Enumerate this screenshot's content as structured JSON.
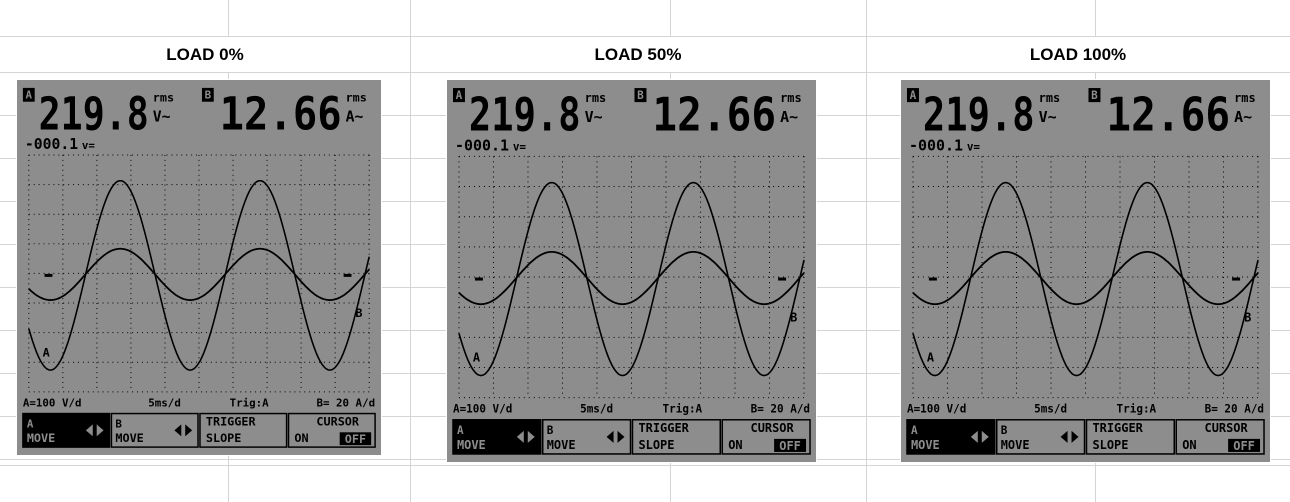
{
  "columns": [
    {
      "title": "LOAD 0%",
      "scope": {
        "channel_a": "A",
        "reading_a": "219.8",
        "reading_a_rms": "rms",
        "reading_a_unit": "V~",
        "channel_b": "B",
        "reading_b": "12.66",
        "reading_b_rms": "rms",
        "reading_b_unit": "A~",
        "offset": "-000.1",
        "offset_unit": "v=",
        "status": [
          "A=100 V/d",
          "5ms/d",
          "Trig:A",
          "B= 20 A/d"
        ],
        "menu": [
          [
            "A",
            "MOVE"
          ],
          [
            "B",
            "MOVE"
          ],
          [
            "TRIGGER",
            "SLOPE"
          ],
          [
            "CURSOR",
            "ON",
            "OFF"
          ]
        ],
        "trace_labels": [
          "A",
          "B"
        ]
      }
    },
    {
      "title": "LOAD 50%",
      "scope": {
        "channel_a": "A",
        "reading_a": "219.8",
        "reading_a_rms": "rms",
        "reading_a_unit": "V~",
        "channel_b": "B",
        "reading_b": "12.66",
        "reading_b_rms": "rms",
        "reading_b_unit": "A~",
        "offset": "-000.1",
        "offset_unit": "v=",
        "status": [
          "A=100 V/d",
          "5ms/d",
          "Trig:A",
          "B= 20 A/d"
        ],
        "menu": [
          [
            "A",
            "MOVE"
          ],
          [
            "B",
            "MOVE"
          ],
          [
            "TRIGGER",
            "SLOPE"
          ],
          [
            "CURSOR",
            "ON",
            "OFF"
          ]
        ],
        "trace_labels": [
          "A",
          "B"
        ]
      }
    },
    {
      "title": "LOAD 100%",
      "scope": {
        "channel_a": "A",
        "reading_a": "219.8",
        "reading_a_rms": "rms",
        "reading_a_unit": "V~",
        "channel_b": "B",
        "reading_b": "12.66",
        "reading_b_rms": "rms",
        "reading_b_unit": "A~",
        "offset": "-000.1",
        "offset_unit": "v=",
        "status": [
          "A=100 V/d",
          "5ms/d",
          "Trig:A",
          "B= 20 A/d"
        ],
        "menu": [
          [
            "A",
            "MOVE"
          ],
          [
            "B",
            "MOVE"
          ],
          [
            "TRIGGER",
            "SLOPE"
          ],
          [
            "CURSOR",
            "ON",
            "OFF"
          ]
        ],
        "trace_labels": [
          "A",
          "B"
        ]
      }
    }
  ]
}
